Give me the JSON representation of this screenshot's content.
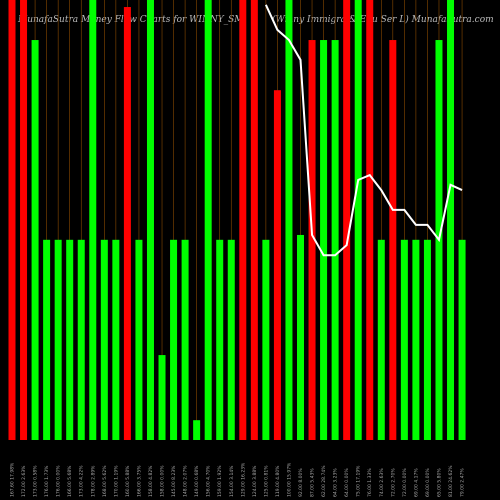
{
  "chart_data": {
    "type": "bar",
    "title": "MunafaSutra  Money Flow  Charts for WINNY_SM",
    "subtitle": "(Winny Immigra & Edu Ser L) MunafaSutra.com",
    "categories": [
      "167.60 17.98%",
      "172.00 2.63%",
      "173.00 0.58%",
      "176.00 1.73%",
      "176.00 0.00%",
      "166.00 5.68%",
      "173.00 4.22%",
      "178.00 2.89%",
      "168.00 5.62%",
      "170.00 1.19%",
      "160.00 5.88%",
      "166.00 3.75%",
      "158.00 4.82%",
      "158.00 0.00%",
      "145.00 8.23%",
      "148.00 2.07%",
      "149.00 0.68%",
      "156.00 4.70%",
      "159.00 1.92%",
      "154.00 3.14%",
      "129.00 16.23%",
      "124.00 3.88%",
      "125.00 0.81%",
      "119.00 4.80%",
      "100.00 15.97%",
      "92.00 8.00%",
      "87.00 5.43%",
      "62.00 28.74%",
      "64.00 3.23%",
      "64.00 0.00%",
      "75.00 17.19%",
      "76.00 1.33%",
      "74.00 2.63%",
      "72.00 2.70%",
      "72.00 0.00%",
      "69.00 4.17%",
      "69.00 0.00%",
      "65.00 5.80%",
      "81.00 24.62%",
      "79.00 2.47%"
    ],
    "values": [
      100,
      100,
      90.9,
      45.5,
      45.5,
      45.5,
      45.5,
      100,
      45.5,
      45.5,
      98.4,
      45.5,
      100,
      19.3,
      45.5,
      45.5,
      4.5,
      100,
      45.5,
      45.5,
      100,
      100,
      45.5,
      79.5,
      100,
      46.6,
      90.9,
      90.9,
      90.9,
      100,
      100,
      100,
      45.5,
      90.9,
      45.5,
      45.5,
      45.5,
      90.9,
      100,
      45.5
    ],
    "colors": [
      "#ff0000",
      "#ff0000",
      "#00ff00",
      "#00ff00",
      "#00ff00",
      "#00ff00",
      "#00ff00",
      "#00ff00",
      "#00ff00",
      "#00ff00",
      "#ff0000",
      "#00ff00",
      "#00ff00",
      "#00ff00",
      "#00ff00",
      "#00ff00",
      "#00ff00",
      "#00ff00",
      "#00ff00",
      "#00ff00",
      "#ff0000",
      "#ff0000",
      "#00ff00",
      "#ff0000",
      "#00ff00",
      "#00ff00",
      "#ff0000",
      "#00ff00",
      "#00ff00",
      "#ff0000",
      "#00ff00",
      "#ff0000",
      "#00ff00",
      "#ff0000",
      "#00ff00",
      "#00ff00",
      "#00ff00",
      "#00ff00",
      "#00ff00",
      "#00ff00"
    ],
    "line": {
      "color": "#ffffff",
      "values": [
        null,
        null,
        null,
        null,
        null,
        null,
        null,
        null,
        null,
        null,
        null,
        null,
        null,
        null,
        null,
        null,
        null,
        null,
        null,
        null,
        null,
        null,
        98.9,
        93.2,
        90.9,
        86.4,
        46.6,
        42,
        42,
        44.3,
        59.1,
        60.2,
        56.8,
        52.3,
        52.3,
        48.9,
        48.9,
        45.5,
        58,
        56.8
      ]
    },
    "ylim": [
      0,
      100
    ]
  }
}
